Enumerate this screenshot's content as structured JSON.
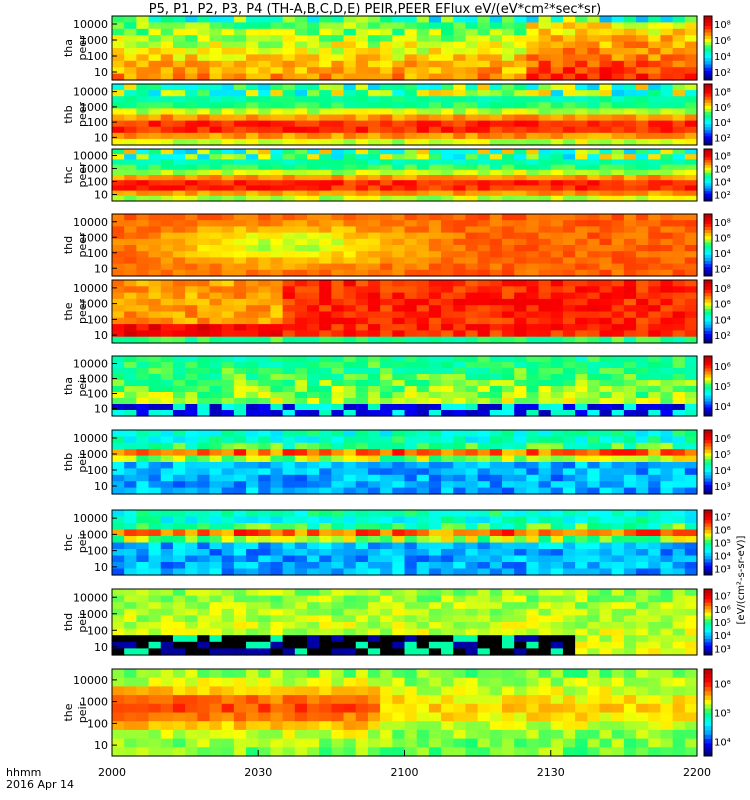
{
  "window_title": "",
  "chart_data": {
    "type": "heatmap",
    "title": "P5, P1, P2, P3, P4 (TH-A,B,C,D,E) PEIR,PEER EFlux eV/(eV*cm²*sec*sr)",
    "x_label_row1": "hhmm",
    "x_label_row2": "2016 Apr 14",
    "x_ticks": [
      "2000",
      "2030",
      "2100",
      "2130",
      "2200"
    ],
    "xlim": [
      "2000",
      "2200"
    ],
    "y_scale": "log",
    "colorbar_label": "[eV/(cm²-s-sr-eV)]",
    "colorscale": [
      "#000080",
      "#0000ff",
      "#00a0ff",
      "#00ffff",
      "#00ff80",
      "#ffff00",
      "#ff8000",
      "#ff0000",
      "#c00000"
    ],
    "panels": [
      {
        "ylabel_top": "tha",
        "ylabel_bottom": "peer",
        "y_ticks": [
          "10",
          "100",
          "1000",
          "10000"
        ],
        "cbar_ticks": [
          "10²",
          "10⁴",
          "10⁶",
          "10⁸"
        ],
        "style": "fixed"
      },
      {
        "ylabel_top": "thb",
        "ylabel_bottom": "peer",
        "y_ticks": [
          "10",
          "100",
          "1000",
          "10000"
        ],
        "cbar_ticks": [
          "10²",
          "10⁴",
          "10⁶",
          "10⁸"
        ],
        "style": "band"
      },
      {
        "ylabel_top": "thc",
        "ylabel_bottom": "peer",
        "y_ticks": [
          "10",
          "100",
          "1000",
          "10000"
        ],
        "cbar_ticks": [
          "10²",
          "10⁴",
          "10⁶",
          "10⁸"
        ],
        "style": "band"
      },
      {
        "ylabel_top": "thd",
        "ylabel_bottom": "peer",
        "y_ticks": [
          "10",
          "100",
          "1000",
          "10000"
        ],
        "cbar_ticks": [
          "10²",
          "10⁴",
          "10⁶",
          "10⁸"
        ],
        "style": "warm"
      },
      {
        "ylabel_top": "the",
        "ylabel_bottom": "peer",
        "y_ticks": [
          "10",
          "100",
          "1000",
          "10000"
        ],
        "cbar_ticks": [
          "10²",
          "10⁴",
          "10⁶",
          "10⁸"
        ],
        "style": "hot"
      },
      {
        "ylabel_top": "tha",
        "ylabel_bottom": "peir",
        "y_ticks": [
          "10",
          "100",
          "1000",
          "10000"
        ],
        "cbar_ticks": [
          "10⁴",
          "10⁵",
          "10⁶"
        ],
        "style": "noisy"
      },
      {
        "ylabel_top": "thb",
        "ylabel_bottom": "peir",
        "y_ticks": [
          "10",
          "100",
          "1000",
          "10000"
        ],
        "cbar_ticks": [
          "10³",
          "10⁴",
          "10⁵",
          "10⁶"
        ],
        "style": "cool"
      },
      {
        "ylabel_top": "thc",
        "ylabel_bottom": "peir",
        "y_ticks": [
          "10",
          "100",
          "1000",
          "10000"
        ],
        "cbar_ticks": [
          "10³",
          "10⁴",
          "10⁵",
          "10⁶",
          "10⁷"
        ],
        "style": "cool"
      },
      {
        "ylabel_top": "thd",
        "ylabel_bottom": "peir",
        "y_ticks": [
          "10",
          "100",
          "1000",
          "10000"
        ],
        "cbar_ticks": [
          "10³",
          "10⁴",
          "10⁵",
          "10⁶",
          "10⁷"
        ],
        "style": "gap"
      },
      {
        "ylabel_top": "the",
        "ylabel_bottom": "peir",
        "y_ticks": [
          "10",
          "100",
          "1000",
          "10000"
        ],
        "cbar_ticks": [
          "10⁴",
          "10⁵",
          "10⁶"
        ],
        "style": "warmcool"
      }
    ]
  }
}
